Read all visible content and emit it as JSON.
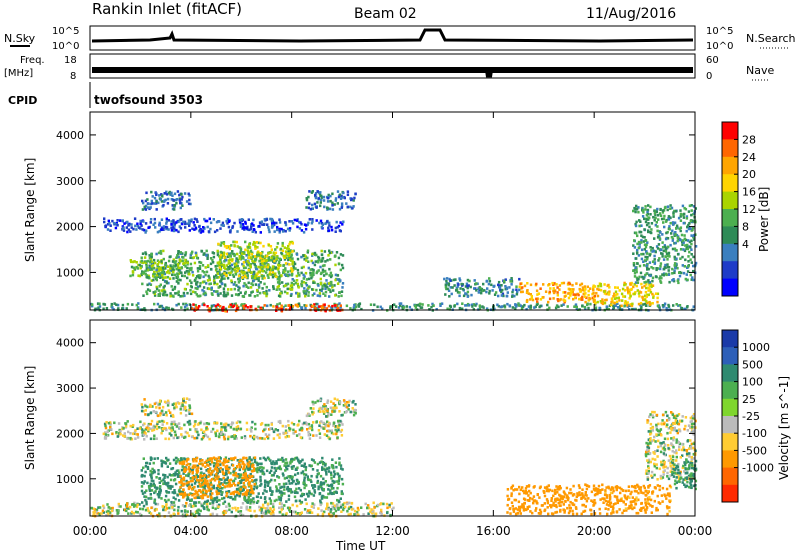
{
  "header": {
    "station": "Rankin Inlet (fitACF)",
    "beam": "Beam 02",
    "date": "11/Aug/2016"
  },
  "strip_panels": {
    "nsky": {
      "label": "N.Sky",
      "left_ticks": [
        "10^5",
        "10^0"
      ],
      "right_label": "N.Search",
      "right_ticks": [
        "10^5",
        "10^0"
      ]
    },
    "freq": {
      "label_line1": "Freq.",
      "label_line2": "[MHz]",
      "left_ticks": [
        "18",
        "8"
      ],
      "right_label": "Nave",
      "right_ticks": [
        "60",
        "0"
      ]
    },
    "cpid": {
      "label": "CPID",
      "program": "twofsound 3503"
    }
  },
  "power_colorbar": {
    "label": "Power [dB]",
    "ticks": [
      "28",
      "24",
      "20",
      "16",
      "12",
      "8",
      "4"
    ],
    "colors": [
      "#ff0000",
      "#ff6600",
      "#ffa500",
      "#ffd400",
      "#aad400",
      "#4caf50",
      "#2e8b57",
      "#3a7fbf",
      "#1e3cc8",
      "#0000ff"
    ]
  },
  "velocity_colorbar": {
    "label": "Velocity [m s^-1]",
    "ticks": [
      "1000",
      "500",
      "100",
      "25",
      "-25",
      "-100",
      "-500",
      "-1000"
    ],
    "colors": [
      "#1a3aa8",
      "#2d5fb8",
      "#2f8a70",
      "#4caf50",
      "#7fd62e",
      "#bbbbbb",
      "#ffcc33",
      "#ff9900",
      "#ff6600",
      "#ff2a00"
    ]
  },
  "chart_data": [
    {
      "type": "heatmap",
      "title": "Power",
      "ylabel": "Slant Range [km]",
      "xlabel": "",
      "yticks": [
        "4000",
        "3000",
        "2000",
        "1000"
      ],
      "xlim": [
        0,
        24
      ],
      "ylim": [
        180,
        4500
      ],
      "value_units": "dB",
      "blobs": [
        {
          "t0": 0.0,
          "t1": 24.0,
          "r0": 200,
          "r1": 350,
          "v": 10
        },
        {
          "t0": 4.0,
          "t1": 10.0,
          "r0": 180,
          "r1": 330,
          "v": 27
        },
        {
          "t0": 2.0,
          "t1": 10.0,
          "r0": 500,
          "r1": 1500,
          "v": 12
        },
        {
          "t0": 5.0,
          "t1": 8.0,
          "r0": 900,
          "r1": 1700,
          "v": 16
        },
        {
          "t0": 1.5,
          "t1": 4.0,
          "r0": 900,
          "r1": 1300,
          "v": 14
        },
        {
          "t0": 0.5,
          "t1": 10.0,
          "r0": 1900,
          "r1": 2200,
          "v": 5
        },
        {
          "t0": 2.0,
          "t1": 4.0,
          "r0": 2400,
          "r1": 2800,
          "v": 7
        },
        {
          "t0": 8.5,
          "t1": 10.5,
          "r0": 2400,
          "r1": 2800,
          "v": 8
        },
        {
          "t0": 14.0,
          "t1": 17.0,
          "r0": 500,
          "r1": 900,
          "v": 9
        },
        {
          "t0": 17.0,
          "t1": 20.0,
          "r0": 380,
          "r1": 800,
          "v": 22
        },
        {
          "t0": 20.0,
          "t1": 22.5,
          "r0": 300,
          "r1": 800,
          "v": 20
        },
        {
          "t0": 21.5,
          "t1": 24.0,
          "r0": 800,
          "r1": 2500,
          "v": 11
        }
      ]
    },
    {
      "type": "heatmap",
      "title": "Velocity",
      "ylabel": "Slant Range [km]",
      "xlabel": "Time UT",
      "xticks": [
        "00:00",
        "04:00",
        "08:00",
        "12:00",
        "16:00",
        "20:00",
        "00:00"
      ],
      "yticks": [
        "4000",
        "3000",
        "2000",
        "1000"
      ],
      "xlim": [
        0,
        24
      ],
      "ylim": [
        180,
        4500
      ],
      "value_units": "m s^-1",
      "blobs": [
        {
          "t0": 0.0,
          "t1": 12.0,
          "r0": 200,
          "r1": 500,
          "v": 0
        },
        {
          "t0": 2.0,
          "t1": 10.0,
          "r0": 500,
          "r1": 1500,
          "v": 150
        },
        {
          "t0": 3.5,
          "t1": 6.5,
          "r0": 600,
          "r1": 1500,
          "v": -300
        },
        {
          "t0": 0.5,
          "t1": 10.0,
          "r0": 1900,
          "r1": 2300,
          "v": 0
        },
        {
          "t0": 2.0,
          "t1": 4.0,
          "r0": 2400,
          "r1": 2800,
          "v": 0
        },
        {
          "t0": 8.5,
          "t1": 10.5,
          "r0": 2400,
          "r1": 2800,
          "v": 0
        },
        {
          "t0": 16.5,
          "t1": 20.0,
          "r0": 250,
          "r1": 900,
          "v": -300
        },
        {
          "t0": 20.0,
          "t1": 23.0,
          "r0": 250,
          "r1": 900,
          "v": -200
        },
        {
          "t0": 22.0,
          "t1": 24.0,
          "r0": 1000,
          "r1": 2500,
          "v": 0
        },
        {
          "t0": 23.0,
          "t1": 24.0,
          "r0": 800,
          "r1": 1400,
          "v": 150
        }
      ]
    }
  ]
}
